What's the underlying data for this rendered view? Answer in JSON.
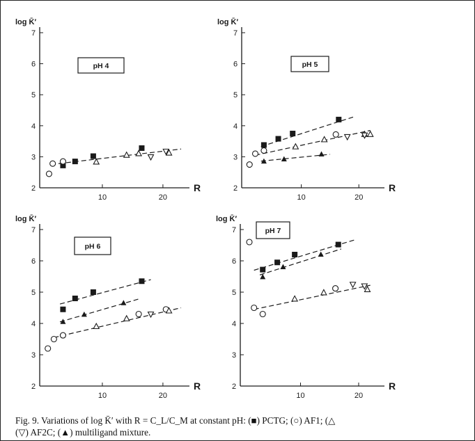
{
  "caption": {
    "line1": "Fig. 9. Variations of log K̄′ with R = C_L/C_M at constant pH: (■) PCTG; (○) AF1; (△",
    "line2": "(▽) AF2C; (▲) multiligand mixture."
  },
  "chart_data": [
    {
      "type": "scatter",
      "label": "pH 4",
      "ylabel": "log K̄′",
      "xlabel": "R",
      "xlim": [
        0,
        23
      ],
      "ylim": [
        2,
        7
      ],
      "xticks": [
        10,
        20
      ],
      "yticks": [
        2,
        3,
        4,
        5,
        6,
        7
      ],
      "series": [
        {
          "marker": "filled-square",
          "points": [
            [
              3.5,
              2.72
            ],
            [
              5.5,
              2.85
            ],
            [
              8.5,
              3.02
            ],
            [
              16.5,
              3.28
            ]
          ]
        },
        {
          "marker": "open-circle",
          "points": [
            [
              1.2,
              2.45
            ],
            [
              1.8,
              2.78
            ],
            [
              3.5,
              2.85
            ]
          ]
        },
        {
          "marker": "open-triangle-up",
          "points": [
            [
              9,
              2.83
            ],
            [
              14,
              3.05
            ],
            [
              16,
              3.1
            ],
            [
              21,
              3.12
            ]
          ]
        },
        {
          "marker": "open-triangle-down",
          "points": [
            [
              18,
              3.0
            ],
            [
              20.5,
              3.18
            ]
          ]
        }
      ],
      "lines": [
        [
          [
            1.5,
            2.75
          ],
          [
            23,
            3.25
          ]
        ]
      ]
    },
    {
      "type": "scatter",
      "label": "pH 5",
      "ylabel": "log K̄′",
      "xlabel": "R",
      "xlim": [
        0,
        23
      ],
      "ylim": [
        2,
        7
      ],
      "xticks": [
        10,
        20
      ],
      "yticks": [
        2,
        3,
        4,
        5,
        6,
        7
      ],
      "series": [
        {
          "marker": "filled-square",
          "points": [
            [
              3.5,
              3.38
            ],
            [
              6,
              3.58
            ],
            [
              8.5,
              3.75
            ],
            [
              16.5,
              4.2
            ]
          ]
        },
        {
          "marker": "open-circle",
          "points": [
            [
              1,
              2.75
            ],
            [
              2,
              3.1
            ],
            [
              3.5,
              3.2
            ],
            [
              16,
              3.72
            ]
          ]
        },
        {
          "marker": "open-triangle-up",
          "points": [
            [
              9,
              3.32
            ],
            [
              14,
              3.55
            ],
            [
              21,
              3.72
            ],
            [
              22,
              3.72
            ]
          ]
        },
        {
          "marker": "open-triangle-down",
          "points": [
            [
              18,
              3.65
            ],
            [
              21,
              3.7
            ]
          ]
        },
        {
          "marker": "filled-triangle-up",
          "points": [
            [
              3.5,
              2.85
            ],
            [
              7,
              2.92
            ],
            [
              13.5,
              3.08
            ]
          ]
        }
      ],
      "lines": [
        [
          [
            3,
            3.33
          ],
          [
            19,
            4.28
          ]
        ],
        [
          [
            2,
            3.05
          ],
          [
            22,
            3.85
          ]
        ],
        [
          [
            3,
            2.86
          ],
          [
            15,
            3.08
          ]
        ]
      ]
    },
    {
      "type": "scatter",
      "label": "pH 6",
      "ylabel": "log K̄′",
      "xlabel": "R",
      "xlim": [
        0,
        23
      ],
      "ylim": [
        2,
        7
      ],
      "xticks": [
        10,
        20
      ],
      "yticks": [
        2,
        3,
        4,
        5,
        6,
        7
      ],
      "series": [
        {
          "marker": "filled-square",
          "points": [
            [
              3.5,
              4.45
            ],
            [
              5.5,
              4.8
            ],
            [
              8.5,
              5.0
            ],
            [
              16.5,
              5.35
            ]
          ]
        },
        {
          "marker": "open-circle",
          "points": [
            [
              1,
              3.2
            ],
            [
              2,
              3.5
            ],
            [
              3.5,
              3.62
            ],
            [
              16,
              4.3
            ],
            [
              20.5,
              4.45
            ]
          ]
        },
        {
          "marker": "open-triangle-up",
          "points": [
            [
              9,
              3.9
            ],
            [
              14,
              4.15
            ],
            [
              21,
              4.4
            ]
          ]
        },
        {
          "marker": "open-triangle-down",
          "points": [
            [
              18,
              4.3
            ]
          ]
        },
        {
          "marker": "filled-triangle-up",
          "points": [
            [
              3.5,
              4.05
            ],
            [
              7,
              4.28
            ],
            [
              13.5,
              4.65
            ]
          ]
        }
      ],
      "lines": [
        [
          [
            3,
            4.62
          ],
          [
            18,
            5.4
          ]
        ],
        [
          [
            3,
            4.05
          ],
          [
            16,
            4.78
          ]
        ],
        [
          [
            2,
            3.55
          ],
          [
            23,
            4.5
          ]
        ]
      ]
    },
    {
      "type": "scatter",
      "label": "pH 7",
      "ylabel": "log K̄′",
      "xlabel": "R",
      "xlim": [
        0,
        23
      ],
      "ylim": [
        2,
        7
      ],
      "xticks": [
        10,
        20
      ],
      "yticks": [
        2,
        3,
        4,
        5,
        6,
        7
      ],
      "series": [
        {
          "marker": "filled-square",
          "points": [
            [
              3.5,
              5.72
            ],
            [
              6,
              5.95
            ],
            [
              9,
              6.2
            ],
            [
              16.5,
              6.52
            ]
          ]
        },
        {
          "marker": "open-circle",
          "points": [
            [
              1.2,
              6.6
            ],
            [
              2,
              4.5
            ],
            [
              3.5,
              4.3
            ],
            [
              16,
              5.12
            ]
          ]
        },
        {
          "marker": "open-triangle-up",
          "points": [
            [
              9,
              4.78
            ],
            [
              14,
              4.98
            ],
            [
              21.5,
              5.08
            ]
          ]
        },
        {
          "marker": "open-triangle-down",
          "points": [
            [
              19,
              5.25
            ],
            [
              21,
              5.2
            ]
          ]
        },
        {
          "marker": "filled-triangle-up",
          "points": [
            [
              3.5,
              5.48
            ],
            [
              7,
              5.8
            ],
            [
              13.5,
              6.2
            ]
          ]
        }
      ],
      "lines": [
        [
          [
            2,
            5.7
          ],
          [
            19.5,
            6.68
          ]
        ],
        [
          [
            3,
            5.55
          ],
          [
            17,
            6.38
          ]
        ],
        [
          [
            2,
            4.45
          ],
          [
            22,
            5.22
          ]
        ]
      ]
    }
  ]
}
